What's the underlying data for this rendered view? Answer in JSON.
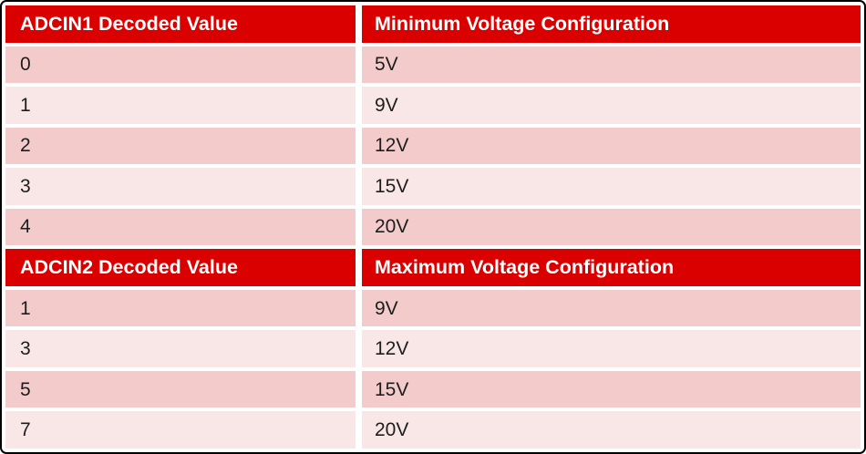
{
  "table": {
    "sections": [
      {
        "header": {
          "col1": "ADCIN1 Decoded Value",
          "col2": "Minimum Voltage Configuration"
        },
        "rows": [
          {
            "value": "0",
            "voltage": "5V"
          },
          {
            "value": "1",
            "voltage": "9V"
          },
          {
            "value": "2",
            "voltage": "12V"
          },
          {
            "value": "3",
            "voltage": "15V"
          },
          {
            "value": "4",
            "voltage": "20V"
          }
        ]
      },
      {
        "header": {
          "col1": "ADCIN2 Decoded Value",
          "col2": "Maximum Voltage Configuration"
        },
        "rows": [
          {
            "value": "1",
            "voltage": "9V"
          },
          {
            "value": "3",
            "voltage": "12V"
          },
          {
            "value": "5",
            "voltage": "15V"
          },
          {
            "value": "7",
            "voltage": "20V"
          }
        ]
      }
    ]
  },
  "colors": {
    "header_red": "#da0000",
    "row_dark": "#f3cbcb",
    "row_light": "#f9e7e7",
    "header_text": "#ffffff",
    "body_text": "#1d1d1d",
    "frame_border": "#000000",
    "gap": "#ffffff"
  }
}
